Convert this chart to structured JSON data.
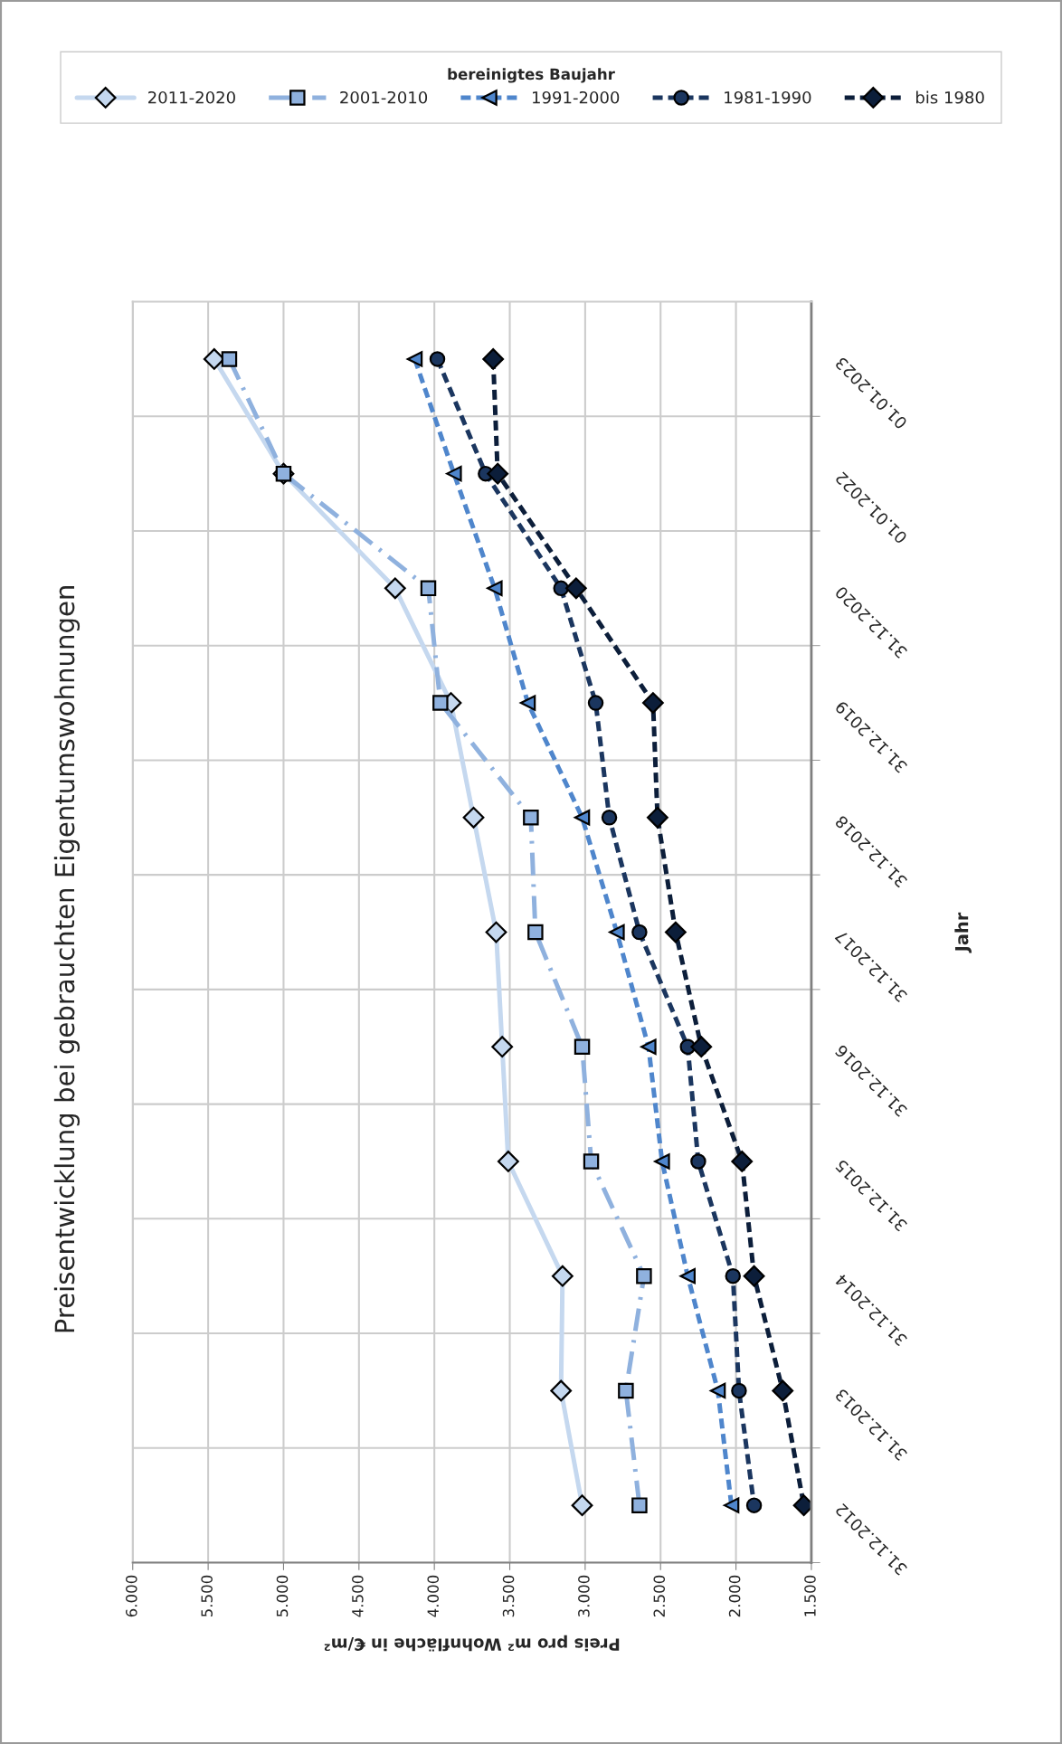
{
  "chart_data": {
    "type": "line",
    "orientation": "horizontal",
    "title": "Preisentwicklung bei gebrauchten Eigentumswohnungen",
    "xlabel": "Preis pro m² Wohnfläche in €/m²",
    "ylabel": "Jahr",
    "categories": [
      "01.01.2023",
      "01.01.2022",
      "31.12.2020",
      "31.12.2019",
      "31.12.2018",
      "31.12.2017",
      "31.12.2016",
      "31.12.2015",
      "31.12.2014",
      "31.12.2013",
      "31.12.2012"
    ],
    "xlim": [
      6000,
      1500
    ],
    "xticks": [
      {
        "value": 6000,
        "label": "6.000"
      },
      {
        "value": 5500,
        "label": "5.500"
      },
      {
        "value": 5000,
        "label": "5.000"
      },
      {
        "value": 4500,
        "label": "4.500"
      },
      {
        "value": 4000,
        "label": "4.000"
      },
      {
        "value": 3500,
        "label": "3.500"
      },
      {
        "value": 3000,
        "label": "3.000"
      },
      {
        "value": 2500,
        "label": "2.500"
      },
      {
        "value": 2000,
        "label": "2.000"
      },
      {
        "value": 1500,
        "label": "1.500"
      }
    ],
    "grid": true,
    "legend": "top",
    "legend_title": "bereinigtes Baujahr",
    "series": [
      {
        "name": "2011-2020",
        "color": "#c5d8ef",
        "marker": "diamond",
        "line_style": "solid",
        "values": [
          5460,
          5000,
          4260,
          3890,
          3740,
          3590,
          3550,
          3510,
          3150,
          3160,
          3020
        ]
      },
      {
        "name": "2001-2010",
        "color": "#8fb1de",
        "marker": "square",
        "line_style": "dashdot",
        "values": [
          5360,
          5000,
          4040,
          3960,
          3360,
          3330,
          3020,
          2960,
          2610,
          2730,
          2640
        ]
      },
      {
        "name": "1991-2000",
        "color": "#4f86cc",
        "marker": "triangle",
        "line_style": "dashed",
        "values": [
          4130,
          3870,
          3600,
          3380,
          3020,
          2790,
          2580,
          2490,
          2320,
          2120,
          2030
        ]
      },
      {
        "name": "1981-1990",
        "color": "#1b365f",
        "marker": "circle",
        "line_style": "dashed",
        "values": [
          3980,
          3660,
          3160,
          2930,
          2840,
          2640,
          2320,
          2250,
          2020,
          1980,
          1880
        ]
      },
      {
        "name": "bis 1980",
        "color": "#0c1e3a",
        "marker": "diamond",
        "line_style": "dashed",
        "values": [
          3610,
          3580,
          3060,
          2550,
          2520,
          2400,
          2230,
          1960,
          1880,
          1690,
          1550
        ]
      }
    ]
  }
}
